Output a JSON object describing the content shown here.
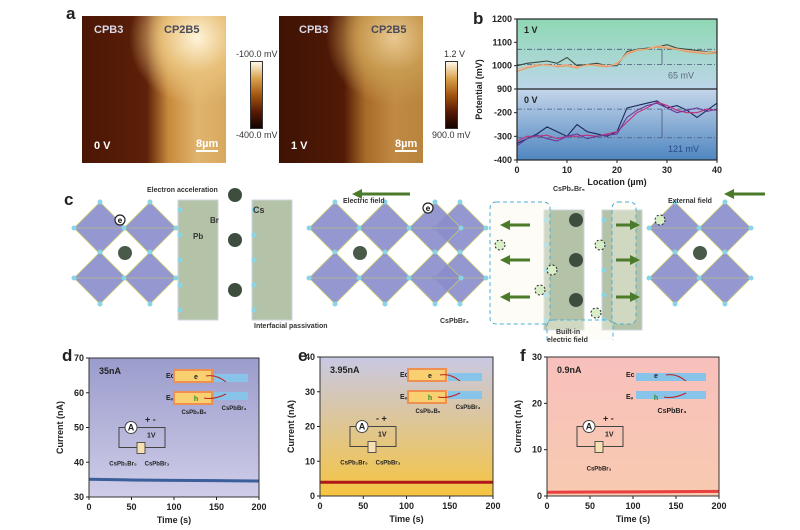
{
  "panel_labels": {
    "a": "a",
    "b": "b",
    "c": "c",
    "d": "d",
    "e": "e",
    "f": "f"
  },
  "panel_a": {
    "images": [
      {
        "left_label": "CPB3",
        "right_label": "CP2B5",
        "bias": "0 V",
        "scale_bar": "8µm",
        "cbar_max": "-100.0 mV",
        "cbar_min": "-400.0 mV"
      },
      {
        "left_label": "CPB3",
        "right_label": "CP2B5",
        "bias": "1 V",
        "scale_bar": "8µm",
        "cbar_max": "1.2 V",
        "cbar_min": "900.0 mV"
      }
    ],
    "colormap": [
      "#120400",
      "#5a1a04",
      "#a4560e",
      "#d9a24e",
      "#fff8e8"
    ]
  },
  "panel_c": {
    "electron_acceleration": "Electron acceleration",
    "electric_field": "Electric field",
    "external_field": "External field",
    "interfacial_passivation": "Interfacial passivation",
    "atom_cs": "Cs",
    "atom_br": "Br",
    "atom_pb": "Pb",
    "cspb2br5": "CsPb₂Br₅",
    "cspbbr3": "CsPbBr₃",
    "built_in_line1": "Built-in",
    "built_in_line2": "electric field",
    "electron": "e",
    "field_arrow_color": "#4a7a2a"
  },
  "chart_data": [
    {
      "type": "line",
      "panel": "b",
      "xlabel": "Location (µm)",
      "ylabel": "Potential (mV)",
      "xlim": [
        0,
        40
      ],
      "xticks": [
        0,
        10,
        20,
        30,
        40
      ],
      "x": [
        0,
        2,
        4,
        6,
        8,
        10,
        12,
        14,
        16,
        18,
        20,
        22,
        24,
        26,
        28,
        30,
        32,
        34,
        36,
        38,
        40
      ],
      "subplots": [
        {
          "label": "1 V",
          "ylim": [
            900,
            1200
          ],
          "yticks": [
            1200,
            1100,
            1000,
            900
          ],
          "background": [
            "#8fd8b4",
            "#bcd6e8"
          ],
          "reference_lines": [
            1070,
            1005
          ],
          "difference_label": "65 mV",
          "series": [
            {
              "color": "#3a4a3a",
              "values": [
                1000,
                1010,
                1015,
                1020,
                1010,
                1035,
                1000,
                1005,
                1010,
                1000,
                1000,
                1060,
                1070,
                1075,
                1080,
                1090,
                1075,
                1070,
                1065,
                1060,
                1060
              ]
            },
            {
              "color": "#f0925a",
              "values": [
                975,
                990,
                1000,
                1005,
                995,
                1000,
                990,
                1005,
                1000,
                995,
                1010,
                1050,
                1065,
                1070,
                1080,
                1075,
                1070,
                1060,
                1055,
                1050,
                1055
              ]
            },
            {
              "color": "#e9b48a",
              "values": [
                985,
                995,
                1005,
                1000,
                1000,
                1005,
                995,
                1000,
                1005,
                1000,
                1005,
                1055,
                1068,
                1072,
                1085,
                1080,
                1072,
                1065,
                1060,
                1058,
                1062
              ]
            }
          ]
        },
        {
          "label": "0 V",
          "ylim": [
            -400,
            -100
          ],
          "yticks": [
            -200,
            -300,
            -400
          ],
          "background": [
            "#c4d6ea",
            "#4f86c0"
          ],
          "reference_lines": [
            -185,
            -306
          ],
          "difference_label": "121 mV",
          "series": [
            {
              "color": "#1c2a5a",
              "values": [
                -330,
                -310,
                -290,
                -260,
                -280,
                -300,
                -250,
                -280,
                -290,
                -300,
                -280,
                -180,
                -170,
                -160,
                -150,
                -180,
                -170,
                -190,
                -220,
                -190,
                -160
              ]
            },
            {
              "color": "#c2307a",
              "values": [
                -320,
                -300,
                -300,
                -295,
                -310,
                -300,
                -300,
                -295,
                -300,
                -290,
                -280,
                -240,
                -200,
                -180,
                -155,
                -170,
                -190,
                -200,
                -200,
                -185,
                -190
              ]
            },
            {
              "color": "#6a3a9a",
              "values": [
                -340,
                -310,
                -295,
                -310,
                -320,
                -300,
                -290,
                -310,
                -300,
                -295,
                -290,
                -220,
                -190,
                -170,
                -160,
                -180,
                -200,
                -190,
                -180,
                -195,
                -185
              ]
            }
          ]
        }
      ]
    },
    {
      "type": "line",
      "panel": "d",
      "xlabel": "Time (s)",
      "ylabel": "Current (nA)",
      "xlim": [
        0,
        200
      ],
      "ylim": [
        30,
        70
      ],
      "xticks": [
        0,
        50,
        100,
        150,
        200
      ],
      "yticks": [
        30,
        40,
        50,
        60,
        70
      ],
      "annotation": "35nA",
      "background": [
        "#9a9ccc",
        "#cfcde8"
      ],
      "series": [
        {
          "color": "#3a5f9a",
          "x": [
            0,
            50,
            100,
            150,
            200
          ],
          "values": [
            35.1,
            34.9,
            34.8,
            34.7,
            34.6
          ]
        }
      ],
      "inset": {
        "ec": "Eᴄ",
        "ev": "Eᵥ",
        "electron": "e",
        "hole": "h",
        "left_material": "CsPb₂B₅",
        "right_material": "CsPbBr₃",
        "polarity": "+ -",
        "meter": "A",
        "voltage": "1V",
        "device_left": "CsPb₂Br₅",
        "device_right": "CsPbBr₃"
      }
    },
    {
      "type": "line",
      "panel": "e",
      "xlabel": "Time (s)",
      "ylabel": "Current (nA)",
      "xlim": [
        0,
        200
      ],
      "ylim": [
        0,
        40
      ],
      "xticks": [
        0,
        50,
        100,
        150,
        200
      ],
      "yticks": [
        0,
        10,
        20,
        30,
        40
      ],
      "annotation": "3.95nA",
      "background": [
        "#c8c8e4",
        "#f6c440"
      ],
      "series": [
        {
          "color": "#b01818",
          "x": [
            0,
            50,
            100,
            150,
            200
          ],
          "values": [
            3.95,
            3.95,
            3.95,
            3.95,
            3.95
          ]
        }
      ],
      "inset": {
        "ec": "Eᴄ",
        "ev": "Eᵥ",
        "electron": "e",
        "hole": "h",
        "left_material": "CsPb₂B₅",
        "right_material": "CsPbBr₃",
        "polarity": "- +",
        "meter": "A",
        "voltage": "1V",
        "device_left": "CsPb₂Br₅",
        "device_right": "CsPbBr₃"
      }
    },
    {
      "type": "line",
      "panel": "f",
      "xlabel": "Time (s)",
      "ylabel": "Current (nA)",
      "xlim": [
        0,
        200
      ],
      "ylim": [
        0,
        30
      ],
      "xticks": [
        0,
        50,
        100,
        150,
        200
      ],
      "yticks": [
        0,
        10,
        20,
        30
      ],
      "annotation": "0.9nA",
      "background": [
        "#f8c0bc",
        "#f8cab0"
      ],
      "series": [
        {
          "color": "#e84040",
          "x": [
            0,
            50,
            100,
            150,
            200
          ],
          "values": [
            0.8,
            0.85,
            0.9,
            0.95,
            1.0
          ]
        }
      ],
      "inset": {
        "ec": "Eᴄ",
        "ev": "Eᵥ",
        "electron": "e",
        "hole": "h",
        "material": "CsPbBr₃",
        "polarity": "+ -",
        "meter": "A",
        "voltage": "1V",
        "device": "CsPbBr₃"
      }
    }
  ]
}
